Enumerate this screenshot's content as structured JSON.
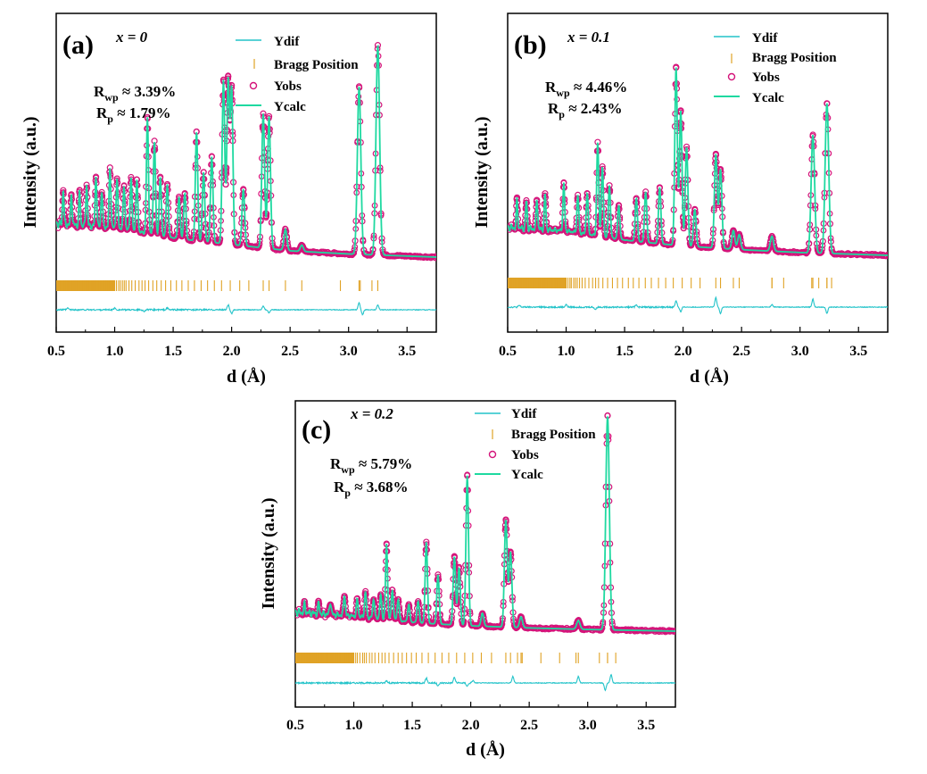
{
  "figure": {
    "colors": {
      "ydif": "#22c3c9",
      "bragg": "#e0a326",
      "yobs": "#d4147a",
      "ycalc": "#1ed9a0"
    }
  },
  "chart_data": [
    {
      "type": "line",
      "panel_label": "(a)",
      "composition": "x = 0",
      "xlabel": "d (Å)",
      "ylabel": "Intensity (a.u.)",
      "xlim": [
        0.5,
        3.75
      ],
      "xticks": [
        "0.5",
        "1.0",
        "1.5",
        "2.0",
        "2.5",
        "3.0",
        "3.5"
      ],
      "legend": [
        "Ydif",
        "Bragg Position",
        "Yobs",
        "Ycalc"
      ],
      "rwp": "R_wp ≈ 3.39%",
      "rp": "R_p ≈ 1.79%",
      "background": [
        [
          0.5,
          0.14
        ],
        [
          1.0,
          0.13
        ],
        [
          1.5,
          0.09
        ],
        [
          2.0,
          0.06
        ],
        [
          2.5,
          0.03
        ],
        [
          3.0,
          0.015
        ],
        [
          3.75,
          0.0
        ]
      ],
      "peaks": [
        [
          0.56,
          0.17
        ],
        [
          0.63,
          0.15
        ],
        [
          0.7,
          0.16
        ],
        [
          0.76,
          0.2
        ],
        [
          0.84,
          0.24
        ],
        [
          0.89,
          0.17
        ],
        [
          0.96,
          0.29
        ],
        [
          1.02,
          0.23
        ],
        [
          1.08,
          0.21
        ],
        [
          1.14,
          0.25
        ],
        [
          1.19,
          0.24
        ],
        [
          1.28,
          0.55
        ],
        [
          1.34,
          0.45
        ],
        [
          1.39,
          0.28
        ],
        [
          1.45,
          0.25
        ],
        [
          1.55,
          0.2
        ],
        [
          1.6,
          0.22
        ],
        [
          1.7,
          0.52
        ],
        [
          1.76,
          0.33
        ],
        [
          1.83,
          0.41
        ],
        [
          1.93,
          0.78
        ],
        [
          1.97,
          0.78
        ],
        [
          2.0,
          0.74
        ],
        [
          2.1,
          0.27
        ],
        [
          2.27,
          0.64
        ],
        [
          2.32,
          0.63
        ],
        [
          2.46,
          0.1
        ],
        [
          2.6,
          0.03
        ],
        [
          3.09,
          0.8
        ],
        [
          3.25,
          1.0
        ]
      ],
      "bragg_positions": [
        2.93,
        3.09,
        3.1,
        3.2,
        3.25
      ],
      "ydif_spikes": [
        [
          0.6,
          0.2
        ],
        [
          1.0,
          0.2
        ],
        [
          1.25,
          -0.2
        ],
        [
          1.45,
          0.2
        ],
        [
          1.97,
          0.6
        ],
        [
          2.0,
          -0.5
        ],
        [
          2.27,
          0.5
        ],
        [
          2.32,
          -0.4
        ],
        [
          3.09,
          0.9
        ],
        [
          3.12,
          -0.6
        ],
        [
          3.25,
          0.6
        ]
      ]
    },
    {
      "type": "line",
      "panel_label": "(b)",
      "composition": "x = 0.1",
      "xlabel": "d (Å)",
      "ylabel": "Intensity (a.u.)",
      "xlim": [
        0.5,
        3.75
      ],
      "xticks": [
        "0.5",
        "1.0",
        "1.5",
        "2.0",
        "2.5",
        "3.0",
        "3.5"
      ],
      "legend": [
        "Ydif",
        "Bragg Position",
        "Yobs",
        "Ycalc"
      ],
      "rwp": "R_wp ≈ 4.46%",
      "rp": "R_p ≈ 2.43%",
      "background": [
        [
          0.5,
          0.13
        ],
        [
          1.0,
          0.12
        ],
        [
          1.5,
          0.08
        ],
        [
          2.0,
          0.05
        ],
        [
          2.5,
          0.03
        ],
        [
          3.0,
          0.015
        ],
        [
          3.75,
          0.0
        ]
      ],
      "peaks": [
        [
          0.58,
          0.15
        ],
        [
          0.66,
          0.15
        ],
        [
          0.75,
          0.16
        ],
        [
          0.82,
          0.19
        ],
        [
          0.98,
          0.25
        ],
        [
          1.1,
          0.2
        ],
        [
          1.18,
          0.22
        ],
        [
          1.27,
          0.5
        ],
        [
          1.31,
          0.37
        ],
        [
          1.37,
          0.28
        ],
        [
          1.45,
          0.18
        ],
        [
          1.6,
          0.23
        ],
        [
          1.68,
          0.27
        ],
        [
          1.8,
          0.3
        ],
        [
          1.94,
          0.95
        ],
        [
          1.98,
          0.72
        ],
        [
          2.03,
          0.53
        ],
        [
          2.1,
          0.2
        ],
        [
          2.28,
          0.5
        ],
        [
          2.32,
          0.42
        ],
        [
          2.43,
          0.1
        ],
        [
          2.48,
          0.08
        ],
        [
          2.76,
          0.08
        ],
        [
          3.11,
          0.63
        ],
        [
          3.23,
          0.8
        ]
      ],
      "bragg_positions": [
        2.76,
        2.86,
        3.1,
        3.16,
        3.23,
        3.27
      ],
      "ydif_spikes": [
        [
          0.6,
          0.2
        ],
        [
          1.0,
          0.3
        ],
        [
          1.25,
          -0.3
        ],
        [
          1.6,
          0.3
        ],
        [
          1.94,
          0.8
        ],
        [
          1.98,
          -0.6
        ],
        [
          2.28,
          1.2
        ],
        [
          2.32,
          -0.8
        ],
        [
          2.76,
          0.3
        ],
        [
          3.11,
          1.0
        ],
        [
          3.23,
          -0.8
        ]
      ]
    },
    {
      "type": "line",
      "panel_label": "(c)",
      "composition": "x = 0.2",
      "xlabel": "d (Å)",
      "ylabel": "Intensity (a.u.)",
      "xlim": [
        0.5,
        3.75
      ],
      "xticks": [
        "0.5",
        "1.0",
        "1.5",
        "2.0",
        "2.5",
        "3.0",
        "3.5"
      ],
      "legend": [
        "Ydif",
        "Bragg Position",
        "Yobs",
        "Ycalc"
      ],
      "rwp": "R_wp ≈ 5.79%",
      "rp": "R_p ≈ 3.68%",
      "background": [
        [
          0.5,
          0.07
        ],
        [
          1.0,
          0.06
        ],
        [
          1.5,
          0.04
        ],
        [
          2.0,
          0.025
        ],
        [
          2.5,
          0.015
        ],
        [
          3.0,
          0.008
        ],
        [
          3.75,
          0.0
        ]
      ],
      "peaks": [
        [
          0.58,
          0.04
        ],
        [
          0.7,
          0.05
        ],
        [
          0.8,
          0.06
        ],
        [
          0.92,
          0.1
        ],
        [
          1.03,
          0.08
        ],
        [
          1.1,
          0.12
        ],
        [
          1.17,
          0.09
        ],
        [
          1.23,
          0.11
        ],
        [
          1.28,
          0.35
        ],
        [
          1.33,
          0.14
        ],
        [
          1.38,
          0.1
        ],
        [
          1.47,
          0.08
        ],
        [
          1.55,
          0.1
        ],
        [
          1.62,
          0.38
        ],
        [
          1.72,
          0.23
        ],
        [
          1.86,
          0.32
        ],
        [
          1.9,
          0.27
        ],
        [
          1.97,
          0.7
        ],
        [
          2.1,
          0.06
        ],
        [
          2.3,
          0.5
        ],
        [
          2.34,
          0.35
        ],
        [
          2.43,
          0.05
        ],
        [
          2.92,
          0.04
        ],
        [
          3.17,
          1.0
        ]
      ],
      "bragg_positions": [
        2.4,
        2.44,
        2.6,
        2.76,
        2.9,
        3.1,
        3.17,
        3.24
      ],
      "ydif_spikes": [
        [
          1.28,
          0.3
        ],
        [
          1.62,
          0.6
        ],
        [
          1.72,
          -0.4
        ],
        [
          1.86,
          0.7
        ],
        [
          1.97,
          -0.4
        ],
        [
          2.02,
          0.3
        ],
        [
          2.36,
          0.8
        ],
        [
          2.92,
          0.8
        ],
        [
          3.15,
          -0.9
        ],
        [
          3.2,
          1.0
        ]
      ]
    }
  ]
}
